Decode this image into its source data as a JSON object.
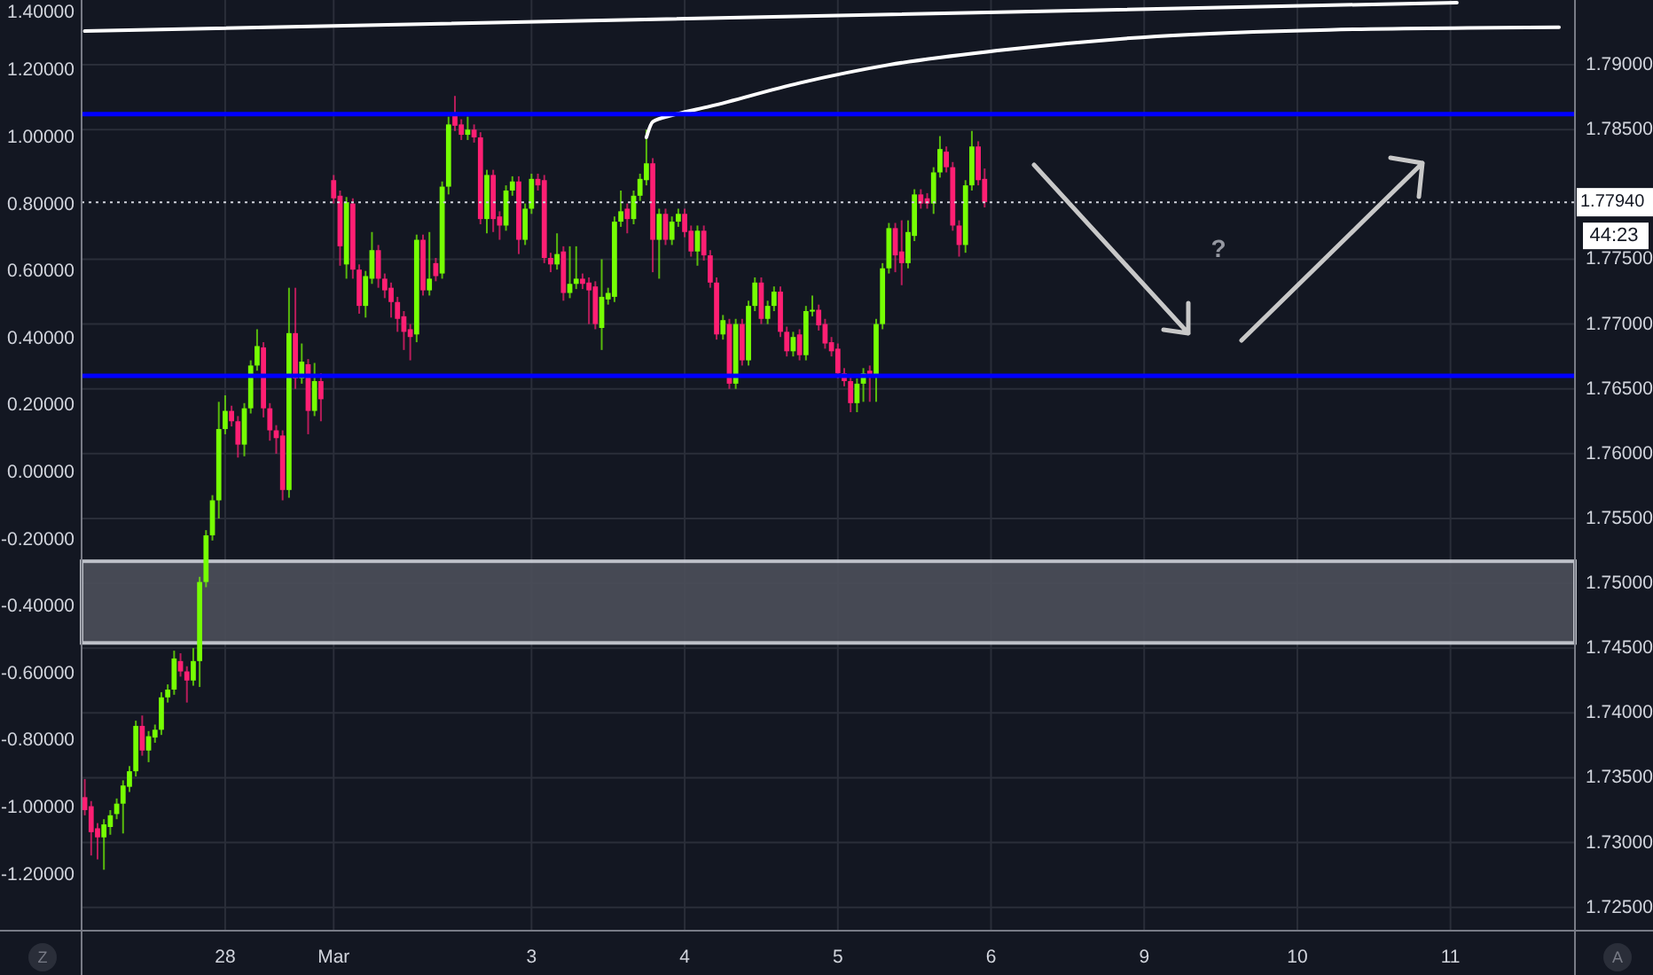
{
  "chart_data": {
    "type": "candlestick",
    "categories": [
      null,
      null,
      null,
      null,
      null,
      null,
      null,
      null,
      null,
      null,
      null,
      null,
      null,
      null,
      null,
      null,
      null,
      null,
      null,
      null,
      null,
      null,
      "28",
      null,
      null,
      null,
      null,
      null,
      null,
      null,
      null,
      null,
      null,
      null,
      null,
      null,
      null,
      null,
      null,
      "Mar",
      null,
      null,
      null,
      null,
      null,
      null,
      null,
      null,
      null,
      null,
      null,
      null,
      null,
      null,
      null,
      null,
      null,
      null,
      null,
      null,
      null,
      null,
      null,
      null,
      null,
      null,
      null,
      null,
      null,
      null,
      "3",
      null,
      null,
      null,
      null,
      null,
      null,
      null,
      null,
      null,
      null,
      null,
      null,
      null,
      null,
      null,
      null,
      null,
      null,
      null,
      null,
      null,
      null,
      null,
      "4",
      null,
      null,
      null,
      null,
      null,
      null,
      null,
      null,
      null,
      null,
      null,
      null,
      null,
      null,
      null,
      null,
      null,
      null,
      null,
      null,
      null,
      null,
      null,
      "5",
      null,
      null,
      null,
      null,
      null,
      null,
      null,
      null,
      null,
      null,
      null,
      null,
      null,
      null,
      null,
      null,
      null,
      null,
      null,
      null,
      null,
      null,
      null,
      "6",
      null,
      null,
      null,
      null,
      null,
      null,
      null,
      null,
      null,
      null,
      null,
      null,
      null,
      null,
      null,
      null,
      null,
      null,
      null,
      null,
      null,
      null,
      null,
      "9",
      null,
      null,
      null,
      null,
      null,
      null,
      null,
      null,
      null,
      null,
      null,
      null,
      null,
      null,
      null,
      null,
      null,
      null,
      null,
      null,
      null,
      null,
      null,
      "10",
      null,
      null,
      null,
      null,
      null,
      null,
      null,
      null,
      null,
      null,
      null,
      null,
      null,
      null,
      null,
      null,
      null,
      null,
      null,
      null,
      null,
      null,
      null,
      "11",
      null,
      null,
      null,
      null,
      null,
      null,
      null,
      null,
      null,
      null,
      null,
      null,
      null,
      null,
      null,
      null,
      null,
      null,
      null
    ],
    "ylim": [
      -1.368,
      1.41
    ],
    "yticks": [
      {
        "value": -1.2,
        "label": "-1.20000"
      },
      {
        "value": -1,
        "label": "-1.00000"
      },
      {
        "value": -0.8,
        "label": "-0.80000"
      },
      {
        "value": -0.6,
        "label": "-0.60000"
      },
      {
        "value": -0.4,
        "label": "-0.40000"
      },
      {
        "value": -0.2,
        "label": "-0.20000"
      },
      {
        "value": 0,
        "label": "0.00000"
      },
      {
        "value": 0.2,
        "label": "0.20000"
      },
      {
        "value": 0.4,
        "label": "0.40000"
      },
      {
        "value": 0.6,
        "label": "0.60000"
      },
      {
        "value": 0.8,
        "label": "0.80000"
      },
      {
        "value": 1,
        "label": "1.00000"
      },
      {
        "value": 1.2,
        "label": "1.20000"
      },
      {
        "value": 1.4,
        "label": "1.40000"
      }
    ],
    "y2lim": [
      1.7232,
      1.795
    ],
    "y2ticks": [
      {
        "value": 1.725,
        "label": "1.72500"
      },
      {
        "value": 1.73,
        "label": "1.73000"
      },
      {
        "value": 1.735,
        "label": "1.73500"
      },
      {
        "value": 1.74,
        "label": "1.74000"
      },
      {
        "value": 1.745,
        "label": "1.74500"
      },
      {
        "value": 1.75,
        "label": "1.75000"
      },
      {
        "value": 1.755,
        "label": "1.75500"
      },
      {
        "value": 1.76,
        "label": "1.76000"
      },
      {
        "value": 1.765,
        "label": "1.76500"
      },
      {
        "value": 1.77,
        "label": "1.77000"
      },
      {
        "value": 1.775,
        "label": "1.77500"
      },
      {
        "value": 1.785,
        "label": "1.78500"
      },
      {
        "value": 1.79,
        "label": "1.79000"
      }
    ],
    "grid": true,
    "series": [
      {
        "axis": "y2",
        "colors": [
          "#ff1f73",
          "#ff1f73",
          "#ff1f73",
          "#76ff03",
          "#76ff03",
          "#76ff03",
          "#76ff03",
          "#76ff03",
          "#76ff03",
          "#ff1f73",
          "#76ff03",
          "#76ff03",
          "#76ff03",
          "#76ff03",
          "#76ff03",
          "#ff1f73",
          "#ff1f73",
          "#76ff03",
          "#76ff03",
          "#76ff03",
          "#76ff03",
          "#76ff03",
          "#76ff03",
          "#ff1f73",
          "#ff1f73",
          "#76ff03",
          "#76ff03",
          "#76ff03",
          "#ff1f73",
          "#ff1f73",
          "#ff1f73",
          "#ff1f73",
          "#76ff03",
          "#ff1f73",
          "#76ff03",
          "#ff1f73",
          "#76ff03",
          "#ff1f73",
          null,
          "#ff1f73",
          "#ff1f73",
          "#76ff03",
          "#ff1f73",
          "#ff1f73",
          "#76ff03",
          "#76ff03",
          "#ff1f73",
          "#ff1f73",
          "#ff1f73",
          "#ff1f73",
          "#ff1f73",
          "#ff1f73",
          "#76ff03",
          "#ff1f73",
          "#76ff03",
          "#ff1f73",
          "#76ff03",
          "#76ff03",
          "#ff1f73",
          "#ff1f73",
          "#76ff03",
          "#ff1f73",
          "#ff1f73",
          "#76ff03",
          "#ff1f73",
          "#ff1f73",
          "#76ff03",
          "#76ff03",
          "#ff1f73",
          "#76ff03",
          "#76ff03",
          "#ff1f73",
          "#ff1f73",
          "#ff1f73",
          "#76ff03",
          "#ff1f73",
          "#76ff03",
          "#76ff03",
          "#ff1f73",
          "#ff1f73",
          "#ff1f73",
          "#76ff03",
          "#76ff03",
          "#76ff03",
          "#76ff03",
          "#ff1f73",
          "#76ff03",
          "#76ff03",
          "#76ff03",
          "#ff1f73",
          "#76ff03",
          "#ff1f73",
          "#76ff03",
          "#76ff03",
          "#ff1f73",
          "#ff1f73",
          "#76ff03",
          "#ff1f73",
          "#ff1f73",
          "#ff1f73",
          "#76ff03",
          "#ff1f73",
          "#76ff03",
          "#ff1f73",
          "#76ff03",
          "#76ff03",
          "#ff1f73",
          "#76ff03",
          "#76ff03",
          "#ff1f73",
          "#ff1f73",
          "#76ff03",
          "#ff1f73",
          "#76ff03",
          "#76ff03",
          "#ff1f73",
          "#ff1f73",
          "#ff1f73",
          "#ff1f73",
          "#ff1f73",
          "#ff1f73",
          "#76ff03",
          "#76ff03",
          "#ff1f73",
          "#76ff03",
          "#76ff03",
          "#76ff03",
          "#ff1f73",
          "#ff1f73",
          "#76ff03",
          "#76ff03",
          "#ff1f73",
          "#ff1f73",
          "#76ff03",
          "#76ff03",
          "#ff1f73",
          "#ff1f73",
          "#ff1f73",
          "#76ff03",
          "#76ff03",
          "#ff1f73",
          "#ff1f73",
          null,
          null,
          null,
          null,
          null,
          null,
          null,
          null,
          null,
          null,
          null,
          null,
          null,
          null,
          null,
          null,
          null,
          null,
          null,
          null,
          null,
          null,
          null,
          null,
          null,
          null,
          null,
          null,
          null,
          null,
          null,
          null,
          null,
          null,
          null,
          null,
          null,
          null,
          null,
          null,
          null,
          null,
          null,
          null,
          null,
          null,
          null,
          null,
          null,
          null,
          null,
          null,
          null,
          null,
          null,
          null,
          null,
          null,
          null,
          null,
          null,
          null,
          null,
          null,
          null,
          null,
          null,
          null,
          null,
          null,
          null,
          null,
          null,
          null,
          null,
          null,
          null,
          null,
          null,
          null,
          null,
          null,
          null,
          null,
          null,
          null,
          null,
          null,
          null,
          null,
          null,
          null
        ],
        "ohlc": [
          [
            1.7335,
            1.7349,
            1.7321,
            1.7325
          ],
          [
            1.7328,
            1.7332,
            1.729,
            1.7308
          ],
          [
            1.7311,
            1.7315,
            1.7287,
            1.7304
          ],
          [
            1.7304,
            1.7318,
            1.7279,
            1.7314
          ],
          [
            1.7312,
            1.7325,
            1.7306,
            1.7321
          ],
          [
            1.7322,
            1.7334,
            1.7318,
            1.733
          ],
          [
            1.733,
            1.7348,
            1.7307,
            1.7344
          ],
          [
            1.7343,
            1.7359,
            1.7339,
            1.7355
          ],
          [
            1.7355,
            1.7394,
            1.7351,
            1.739
          ],
          [
            1.739,
            1.7398,
            1.7367,
            1.7371
          ],
          [
            1.7371,
            1.7386,
            1.7362,
            1.7382
          ],
          [
            1.7381,
            1.7391,
            1.7377,
            1.7387
          ],
          [
            1.7387,
            1.7416,
            1.7383,
            1.7412
          ],
          [
            1.7412,
            1.7422,
            1.7408,
            1.7418
          ],
          [
            1.7418,
            1.7448,
            1.7414,
            1.7442
          ],
          [
            1.744,
            1.7446,
            1.7428,
            1.7432
          ],
          [
            1.7432,
            1.7436,
            1.7408,
            1.7425
          ],
          [
            1.7425,
            1.745,
            1.7421,
            1.744
          ],
          [
            1.744,
            1.7505,
            1.742,
            1.7501
          ],
          [
            1.7501,
            1.7541,
            1.7497,
            1.7537
          ],
          [
            1.7537,
            1.7568,
            1.7533,
            1.7564
          ],
          [
            1.7564,
            1.764,
            1.755,
            1.7619
          ],
          [
            1.7619,
            1.7645,
            1.7615,
            1.7633
          ],
          [
            1.7633,
            1.7637,
            1.7621,
            1.7625
          ],
          [
            1.7625,
            1.7629,
            1.7597,
            1.7607
          ],
          [
            1.7607,
            1.7639,
            1.7598,
            1.7635
          ],
          [
            1.7635,
            1.7672,
            1.7631,
            1.7668
          ],
          [
            1.7668,
            1.7696,
            1.7664,
            1.7683
          ],
          [
            1.7682,
            1.7686,
            1.7628,
            1.7635
          ],
          [
            1.7635,
            1.7639,
            1.761,
            1.7618
          ],
          [
            1.7618,
            1.7622,
            1.76,
            1.7612
          ],
          [
            1.7614,
            1.7618,
            1.7564,
            1.7572
          ],
          [
            1.7572,
            1.7728,
            1.7566,
            1.7693
          ],
          [
            1.7693,
            1.7728,
            1.765,
            1.7658
          ],
          [
            1.7658,
            1.7685,
            1.7654,
            1.7671
          ],
          [
            1.7669,
            1.7673,
            1.7615,
            1.7633
          ],
          [
            1.7633,
            1.767,
            1.7629,
            1.7656
          ],
          [
            1.7656,
            1.7662,
            1.7625,
            1.7642
          ],
          null,
          [
            1.7811,
            1.7815,
            1.7793,
            1.7797
          ],
          [
            1.7799,
            1.7803,
            1.7745,
            1.776
          ],
          [
            1.7746,
            1.7798,
            1.7735,
            1.7794
          ],
          [
            1.7793,
            1.7797,
            1.7735,
            1.7742
          ],
          [
            1.7742,
            1.7746,
            1.7708,
            1.7714
          ],
          [
            1.7714,
            1.7741,
            1.7705,
            1.7737
          ],
          [
            1.7735,
            1.7771,
            1.7731,
            1.7757
          ],
          [
            1.7757,
            1.7761,
            1.7728,
            1.7735
          ],
          [
            1.7735,
            1.7739,
            1.772,
            1.7726
          ],
          [
            1.7728,
            1.7732,
            1.7705,
            1.7717
          ],
          [
            1.7717,
            1.7721,
            1.7694,
            1.7704
          ],
          [
            1.7706,
            1.771,
            1.768,
            1.7694
          ],
          [
            1.7696,
            1.77,
            1.7672,
            1.769
          ],
          [
            1.7692,
            1.7769,
            1.7686,
            1.7765
          ],
          [
            1.7765,
            1.7769,
            1.7722,
            1.7726
          ],
          [
            1.7726,
            1.7771,
            1.7722,
            1.7735
          ],
          [
            1.7747,
            1.7751,
            1.7733,
            1.7737
          ],
          [
            1.7739,
            1.781,
            1.7735,
            1.7806
          ],
          [
            1.7806,
            1.786,
            1.78,
            1.7854
          ],
          [
            1.7861,
            1.7876,
            1.7849,
            1.7853
          ],
          [
            1.7854,
            1.7858,
            1.7842,
            1.7846
          ],
          [
            1.7846,
            1.786,
            1.7842,
            1.785
          ],
          [
            1.785,
            1.7854,
            1.784,
            1.7844
          ],
          [
            1.7844,
            1.7848,
            1.7777,
            1.7781
          ],
          [
            1.7781,
            1.7819,
            1.777,
            1.7815
          ],
          [
            1.7815,
            1.7819,
            1.7771,
            1.7781
          ],
          [
            1.7783,
            1.7787,
            1.7765,
            1.7776
          ],
          [
            1.7776,
            1.7807,
            1.7772,
            1.7803
          ],
          [
            1.7803,
            1.7814,
            1.7799,
            1.781
          ],
          [
            1.781,
            1.7814,
            1.7754,
            1.7765
          ],
          [
            1.7765,
            1.7793,
            1.7761,
            1.7789
          ],
          [
            1.7789,
            1.7816,
            1.7785,
            1.7812
          ],
          [
            1.7812,
            1.7816,
            1.7803,
            1.7807
          ],
          [
            1.7811,
            1.7815,
            1.7747,
            1.7751
          ],
          [
            1.7751,
            1.7755,
            1.774,
            1.7746
          ],
          [
            1.7746,
            1.777,
            1.7742,
            1.7754
          ],
          [
            1.7756,
            1.776,
            1.7718,
            1.7724
          ],
          [
            1.7724,
            1.776,
            1.772,
            1.7731
          ],
          [
            1.7731,
            1.776,
            1.7727,
            1.7735
          ],
          [
            1.7735,
            1.7739,
            1.7727,
            1.7731
          ],
          [
            1.7732,
            1.7736,
            1.77,
            1.7726
          ],
          [
            1.7729,
            1.7733,
            1.7696,
            1.77
          ],
          [
            1.7697,
            1.775,
            1.768,
            1.7721
          ],
          [
            1.7719,
            1.7728,
            1.7715,
            1.7724
          ],
          [
            1.7721,
            1.7783,
            1.7717,
            1.7779
          ],
          [
            1.7779,
            1.7803,
            1.7775,
            1.7787
          ],
          [
            1.7789,
            1.7793,
            1.777,
            1.7781
          ],
          [
            1.7781,
            1.7803,
            1.7777,
            1.7799
          ],
          [
            1.7799,
            1.7816,
            1.7795,
            1.7812
          ],
          [
            1.7811,
            1.785,
            1.7807,
            1.7824
          ],
          [
            1.7824,
            1.7828,
            1.774,
            1.7765
          ],
          [
            1.7765,
            1.7789,
            1.7735,
            1.7785
          ],
          [
            1.7785,
            1.7789,
            1.7761,
            1.7765
          ],
          [
            1.7765,
            1.7783,
            1.7761,
            1.7779
          ],
          [
            1.7779,
            1.7789,
            1.7775,
            1.7785
          ],
          [
            1.7785,
            1.7789,
            1.7767,
            1.7771
          ],
          [
            1.7772,
            1.7776,
            1.7752,
            1.7756
          ],
          [
            1.7756,
            1.7776,
            1.7745,
            1.7772
          ],
          [
            1.7772,
            1.7776,
            1.7749,
            1.7753
          ],
          [
            1.7753,
            1.7757,
            1.7728,
            1.7732
          ],
          [
            1.7732,
            1.7736,
            1.7688,
            1.7692
          ],
          [
            1.7692,
            1.7707,
            1.7688,
            1.7703
          ],
          [
            1.77,
            1.7704,
            1.765,
            1.7654
          ],
          [
            1.7654,
            1.7704,
            1.765,
            1.77
          ],
          [
            1.77,
            1.7704,
            1.7668,
            1.7672
          ],
          [
            1.7672,
            1.7718,
            1.7668,
            1.7714
          ],
          [
            1.7714,
            1.7736,
            1.771,
            1.7732
          ],
          [
            1.7732,
            1.7736,
            1.77,
            1.7704
          ],
          [
            1.7704,
            1.7718,
            1.77,
            1.7714
          ],
          [
            1.7714,
            1.7729,
            1.771,
            1.7725
          ],
          [
            1.7725,
            1.7729,
            1.769,
            1.7694
          ],
          [
            1.7694,
            1.7698,
            1.7675,
            1.7679
          ],
          [
            1.7679,
            1.7694,
            1.7675,
            1.769
          ],
          [
            1.7692,
            1.7696,
            1.7672,
            1.7676
          ],
          [
            1.7676,
            1.7714,
            1.7672,
            1.771
          ],
          [
            1.771,
            1.7722,
            1.7706,
            1.7711
          ],
          [
            1.7711,
            1.7715,
            1.7695,
            1.7699
          ],
          [
            1.77,
            1.7704,
            1.7681,
            1.7685
          ],
          [
            1.7686,
            1.769,
            1.7675,
            1.7679
          ],
          [
            1.7681,
            1.7685,
            1.7658,
            1.7662
          ],
          [
            1.7662,
            1.7666,
            1.7652,
            1.7656
          ],
          [
            1.7656,
            1.766,
            1.7632,
            1.7639
          ],
          [
            1.7639,
            1.7658,
            1.7632,
            1.7654
          ],
          [
            1.7654,
            1.7666,
            1.764,
            1.7662
          ],
          [
            1.7664,
            1.7668,
            1.764,
            1.766
          ],
          [
            1.766,
            1.7704,
            1.764,
            1.77
          ],
          [
            1.77,
            1.7747,
            1.7696,
            1.7743
          ],
          [
            1.7743,
            1.7778,
            1.7739,
            1.7774
          ],
          [
            1.7774,
            1.7778,
            1.774,
            1.7753
          ],
          [
            1.7756,
            1.778,
            1.773,
            1.7747
          ],
          [
            1.7747,
            1.778,
            1.7743,
            1.7771
          ],
          [
            1.7768,
            1.7804,
            1.7764,
            1.78
          ],
          [
            1.78,
            1.7804,
            1.7789,
            1.7793
          ],
          [
            1.7797,
            1.7801,
            1.7789,
            1.7793
          ],
          [
            1.7793,
            1.7821,
            1.7785,
            1.7817
          ],
          [
            1.7817,
            1.7845,
            1.7813,
            1.7835
          ],
          [
            1.7833,
            1.7837,
            1.7817,
            1.7821
          ],
          [
            1.7821,
            1.7825,
            1.7772,
            1.7776
          ],
          [
            1.7776,
            1.778,
            1.7752,
            1.7761
          ],
          [
            1.7761,
            1.7811,
            1.7755,
            1.7807
          ],
          [
            1.7807,
            1.7849,
            1.7803,
            1.7837
          ],
          [
            1.7837,
            1.7841,
            1.7807,
            1.7811
          ],
          [
            1.7812,
            1.782,
            1.779,
            1.7794
          ],
          null,
          null,
          null,
          null,
          null,
          null,
          null,
          null,
          null,
          null,
          null,
          null,
          null,
          null,
          null,
          null,
          null,
          null,
          null,
          null,
          null,
          null,
          null,
          null,
          null,
          null,
          null,
          null,
          null,
          null,
          null,
          null,
          null,
          null,
          null,
          null,
          null,
          null,
          null,
          null,
          null,
          null,
          null,
          null,
          null,
          null,
          null,
          null,
          null,
          null,
          null,
          null,
          null,
          null,
          null,
          null,
          null,
          null,
          null,
          null,
          null,
          null,
          null,
          null,
          null,
          null,
          null,
          null,
          null,
          null,
          null,
          null,
          null,
          null,
          null,
          null,
          null,
          null,
          null,
          null,
          null,
          null,
          null,
          null,
          null,
          null,
          null,
          null,
          null,
          null,
          null,
          null
        ]
      },
      {
        "type": "line",
        "axis": "y2",
        "color": "#ffffff",
        "values": [
          1.7926,
          null,
          null,
          null,
          null,
          null,
          null,
          null,
          null,
          null,
          null,
          null,
          null,
          null,
          null,
          null,
          null,
          null,
          null,
          null,
          null,
          null,
          null,
          null,
          null,
          null,
          null,
          null,
          null,
          null,
          null,
          null,
          null,
          null,
          null,
          null,
          null,
          null,
          null,
          null,
          null,
          null,
          null,
          null,
          null,
          null,
          null,
          null,
          null,
          null,
          null,
          null,
          null,
          null,
          null,
          null,
          null,
          null,
          null,
          null,
          null,
          null,
          null,
          null,
          null,
          null,
          null,
          null,
          null,
          null,
          null,
          null,
          null,
          null,
          null,
          null,
          null,
          null,
          null,
          null,
          null,
          null,
          null,
          null,
          null,
          null,
          null,
          null,
          null,
          null,
          null,
          null,
          null,
          null,
          null,
          null,
          null,
          null,
          null,
          null,
          null,
          null,
          null,
          null,
          null,
          null,
          null,
          null,
          null,
          null,
          null,
          null,
          null,
          null,
          null,
          null,
          null,
          null,
          null,
          null,
          null,
          null,
          null,
          null,
          null,
          null,
          null,
          null,
          null,
          null,
          null,
          null,
          null,
          null,
          null,
          null,
          null,
          null,
          null,
          null,
          null,
          null,
          null,
          null,
          null,
          null,
          null,
          null,
          null,
          null,
          null,
          null,
          null,
          null,
          null,
          null,
          null,
          null,
          null,
          null,
          null,
          null,
          null,
          null,
          null,
          null,
          null,
          null,
          null,
          null,
          null,
          null,
          null,
          null,
          null,
          null,
          null,
          null,
          null,
          null,
          null,
          null,
          null,
          null,
          null,
          null,
          null,
          null,
          null,
          null,
          null,
          null,
          null,
          null,
          null,
          null,
          null,
          null,
          null,
          null,
          null,
          null,
          null,
          null,
          null,
          null,
          null,
          null,
          null,
          null,
          null,
          null,
          null,
          null,
          null,
          1.7948,
          null,
          null,
          null,
          null,
          null,
          null,
          null,
          null,
          null,
          null,
          null,
          null,
          null,
          null,
          null,
          null,
          null,
          null
        ]
      },
      {
        "type": "line",
        "axis": "y2",
        "color": "#ffffff",
        "values": [
          null,
          null,
          null,
          null,
          null,
          null,
          null,
          null,
          null,
          null,
          null,
          null,
          null,
          null,
          null,
          null,
          null,
          null,
          null,
          null,
          null,
          null,
          null,
          null,
          null,
          null,
          null,
          null,
          null,
          null,
          null,
          null,
          null,
          null,
          null,
          null,
          null,
          null,
          null,
          null,
          null,
          null,
          null,
          null,
          null,
          null,
          null,
          null,
          null,
          null,
          null,
          null,
          null,
          null,
          null,
          null,
          null,
          null,
          null,
          null,
          null,
          null,
          null,
          null,
          null,
          null,
          null,
          null,
          null,
          null,
          null,
          null,
          null,
          null,
          null,
          null,
          null,
          null,
          null,
          null,
          null,
          null,
          null,
          null,
          null,
          null,
          null,
          null,
          1.7844,
          1.7856,
          null,
          null,
          1.7861,
          null,
          null,
          null,
          null,
          null,
          1.7868,
          null,
          null,
          null,
          null,
          null,
          null,
          null,
          null,
          null,
          null,
          null,
          null,
          null,
          1.7886,
          null,
          null,
          null,
          null,
          null,
          null,
          null,
          null,
          null,
          null,
          null,
          null,
          null,
          1.79,
          null,
          null,
          null,
          null,
          null,
          null,
          null,
          null,
          null,
          null,
          null,
          null,
          null,
          null,
          null,
          null,
          1.7911,
          null,
          null,
          null,
          null,
          null,
          null,
          null,
          null,
          null,
          null,
          null,
          null,
          null,
          null,
          null,
          null,
          null,
          null,
          null,
          null,
          null,
          null,
          null,
          null,
          1.7922,
          null,
          null,
          null,
          null,
          null,
          null,
          null,
          null,
          null,
          null,
          null,
          null,
          null,
          null,
          null,
          null,
          null,
          null,
          null,
          null,
          null,
          null,
          null,
          null,
          null,
          null,
          1.7927,
          null,
          null,
          null,
          null,
          null,
          null,
          null,
          null,
          null,
          null,
          null,
          null,
          null,
          null,
          null,
          null,
          null,
          null,
          null,
          null,
          null,
          null,
          null,
          null,
          null,
          null,
          null,
          null,
          null,
          null,
          null,
          null,
          null,
          null,
          null,
          1.7929,
          null,
          null
        ]
      }
    ],
    "ref_lines": [
      {
        "axis": "y2",
        "value": 1.7862,
        "color": "#0000ff",
        "line_style": "solid"
      },
      {
        "axis": "y2",
        "value": 1.766,
        "color": "#0000ff",
        "line_style": "solid"
      },
      {
        "axis": "y2",
        "value": 1.7794,
        "label": "1.77940",
        "color": "#d1d4dc",
        "line_style": "dotted"
      }
    ],
    "bands": [
      {
        "axis": "y2",
        "from": 1.7454,
        "to": 1.7517,
        "color": "#4c4f5a"
      }
    ],
    "annotations": [
      "44:23",
      "Z",
      "A",
      "?"
    ]
  }
}
